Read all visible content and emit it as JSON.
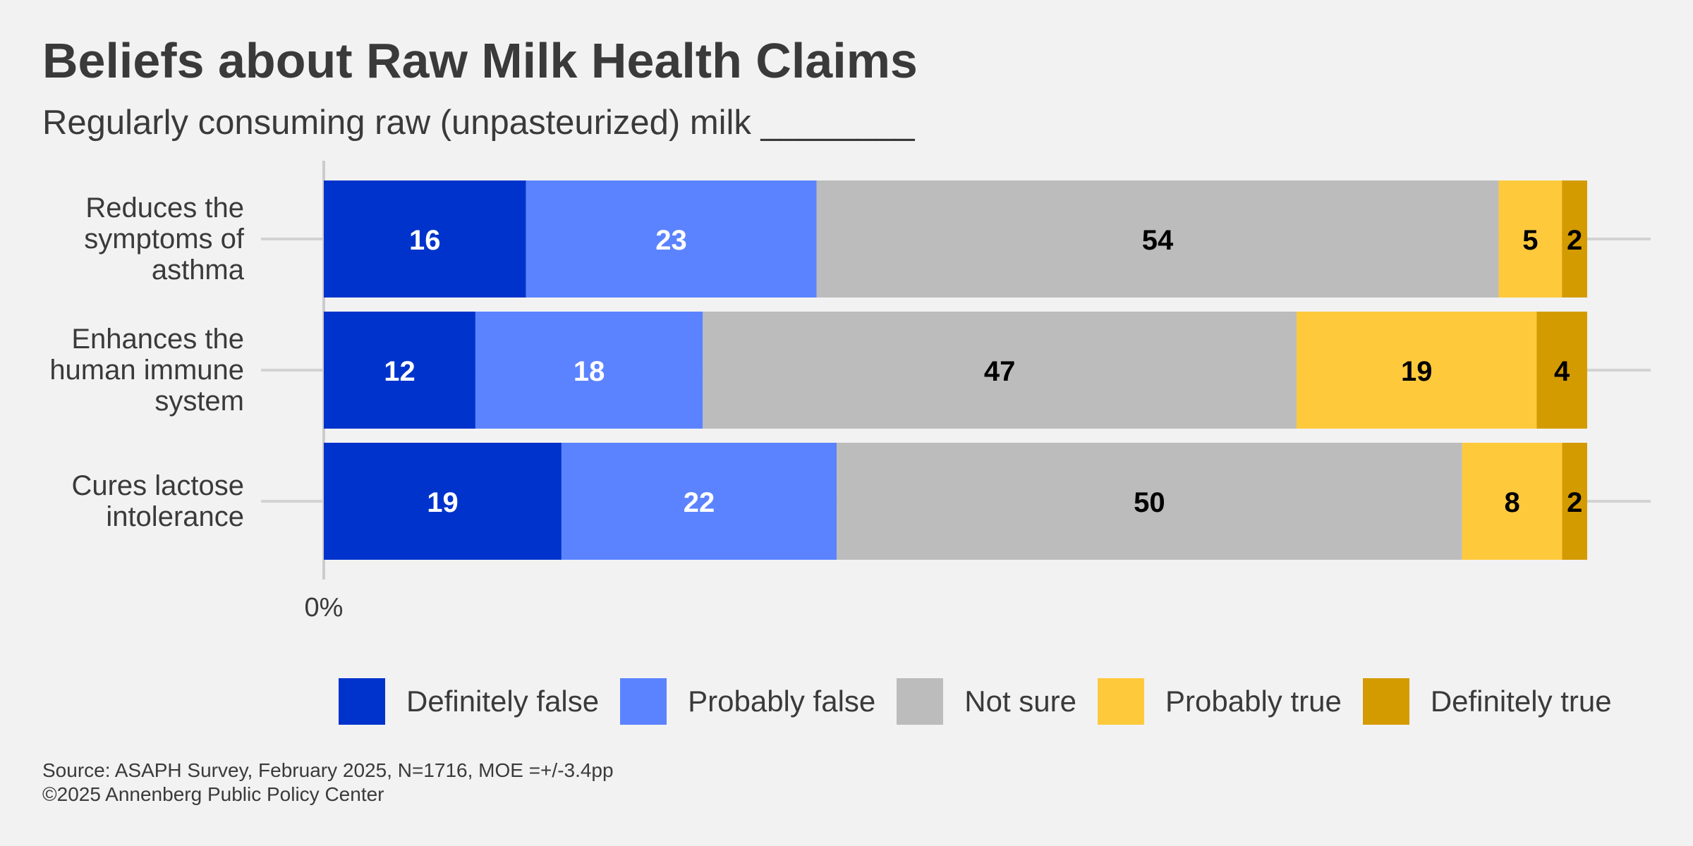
{
  "title": "Beliefs about Raw Milk Health Claims",
  "subtitle": "Regularly consuming raw (unpasteurized) milk ________",
  "source": "Source: ASAPH Survey, February 2025, N=1716, MOE =+/-3.4pp",
  "copyright": "©2025 Annenberg Public Policy Center",
  "chart_data": {
    "type": "bar",
    "orientation": "horizontal",
    "stacked": true,
    "categories": [
      "Reduces the symptoms of asthma",
      "Enhances the human immune system",
      "Cures lactose intolerance"
    ],
    "category_lines": [
      [
        "Reduces the",
        "symptoms of",
        "asthma"
      ],
      [
        "Enhances the",
        "human immune",
        "system"
      ],
      [
        "Cures lactose",
        "intolerance"
      ]
    ],
    "series": [
      {
        "name": "Definitely false",
        "values": [
          16,
          12,
          19
        ],
        "color": "#0033cc",
        "label_color": "#ffffff"
      },
      {
        "name": "Probably false",
        "values": [
          23,
          18,
          22
        ],
        "color": "#5b83ff",
        "label_color": "#ffffff"
      },
      {
        "name": "Not sure",
        "values": [
          54,
          47,
          50
        ],
        "color": "#bcbcbc",
        "label_color": "#000000"
      },
      {
        "name": "Probably true",
        "values": [
          5,
          19,
          8
        ],
        "color": "#ffc93c",
        "label_color": "#000000"
      },
      {
        "name": "Definitely true",
        "values": [
          2,
          4,
          2
        ],
        "color": "#d49b00",
        "label_color": "#000000"
      }
    ],
    "x_tick_label": "0%",
    "legend_position": "bottom",
    "grid": false
  }
}
